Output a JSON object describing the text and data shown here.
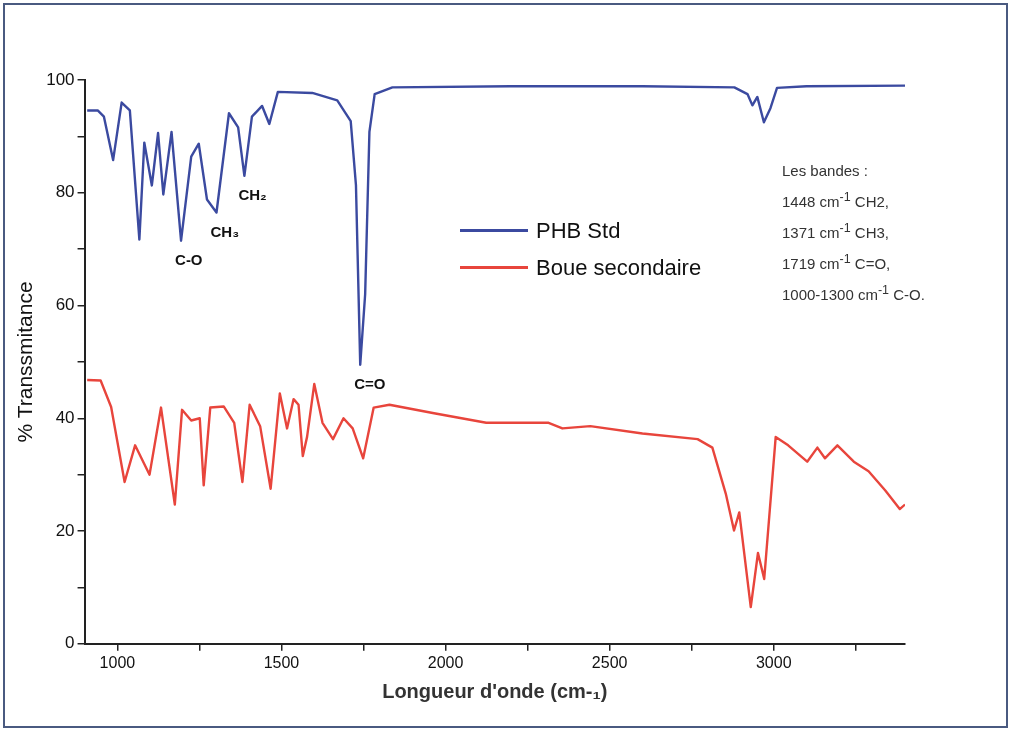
{
  "chart_data": {
    "type": "line",
    "xlabel": "Longueur d'onde (cm-₁)",
    "ylabel": "% Transsmitance",
    "xlim": [
      900,
      3400
    ],
    "xticks": [
      1000,
      {
        "value": 1250,
        "label": null
      },
      1500,
      {
        "value": 1750,
        "label": null
      },
      2000,
      {
        "value": 2250,
        "label": null
      },
      2500,
      {
        "value": 2750,
        "label": null
      },
      3000,
      {
        "value": 3250,
        "label": null
      }
    ],
    "ylim": [
      0,
      100
    ],
    "yticks": [
      0,
      {
        "value": 10,
        "label": null
      },
      20,
      {
        "value": 30,
        "label": null
      },
      40,
      {
        "value": 50,
        "label": null
      },
      60,
      {
        "value": 70,
        "label": null
      },
      80,
      {
        "value": 90,
        "label": null
      },
      100
    ],
    "grid": false,
    "legend": "right",
    "marker": "none",
    "line_style": "solid",
    "series": [
      {
        "name": "PHB  Std",
        "color": "#3b4aa0",
        "x": [
          908,
          940,
          959,
          987,
          1013,
          1038,
          1067,
          1082,
          1105,
          1124,
          1140,
          1165,
          1194,
          1225,
          1248,
          1273,
          1302,
          1340,
          1368,
          1387,
          1410,
          1441,
          1463,
          1489,
          1594,
          1670,
          1711,
          1727,
          1740,
          1755,
          1768,
          1784,
          1838,
          2200,
          2600,
          2880,
          2920,
          2935,
          2950,
          2970,
          2990,
          3010,
          3100,
          3400
        ],
        "values": [
          94.6,
          94.6,
          93.5,
          85.8,
          96,
          94.6,
          71.7,
          88.9,
          81.3,
          90.6,
          79.7,
          90.8,
          71.5,
          86.4,
          88.7,
          78.8,
          76.5,
          94.1,
          91.6,
          83,
          93.5,
          95.4,
          92.2,
          97.9,
          97.7,
          96.4,
          92.7,
          81.3,
          49.5,
          62,
          90.8,
          97.5,
          98.7,
          98.9,
          98.9,
          98.7,
          97.5,
          95.5,
          97,
          92.5,
          95,
          98.6,
          98.9,
          99
        ]
      },
      {
        "name": "Boue secondaire",
        "color": "#e8453c",
        "x": [
          908,
          949,
          981,
          1022,
          1054,
          1098,
          1133,
          1175,
          1197,
          1225,
          1251,
          1263,
          1283,
          1324,
          1356,
          1381,
          1403,
          1435,
          1467,
          1495,
          1517,
          1537,
          1552,
          1565,
          1578,
          1600,
          1625,
          1657,
          1689,
          1717,
          1749,
          1781,
          1829,
          1965,
          2124,
          2314,
          2356,
          2441,
          2600,
          2768,
          2813,
          2854,
          2879,
          2895,
          2930,
          2952,
          2971,
          3006,
          3044,
          3102,
          3133,
          3156,
          3194,
          3244,
          3289,
          3340,
          3384,
          3400
        ],
        "values": [
          46.8,
          46.7,
          42,
          28.7,
          35.2,
          30,
          41.9,
          24.7,
          41.5,
          39.6,
          40,
          28.1,
          41.9,
          42.1,
          39.2,
          28.7,
          42.4,
          38.6,
          27.5,
          44.4,
          38.2,
          43.4,
          42.4,
          33.3,
          36.7,
          46.1,
          39.2,
          36.3,
          40,
          38.2,
          32.9,
          41.9,
          42.4,
          40.9,
          39.2,
          39.2,
          38.2,
          38.6,
          37.3,
          36.3,
          34.8,
          26.6,
          20.1,
          23.3,
          6.5,
          16.1,
          11.5,
          36.7,
          35.2,
          32.3,
          34.8,
          32.9,
          35.2,
          32.3,
          30.6,
          27.2,
          23.9,
          24.7
        ]
      }
    ],
    "annotations": [
      {
        "text": "C-O",
        "x": 1194,
        "y": 71.5
      },
      {
        "text": "CH₃",
        "x": 1302,
        "y": 76.5
      },
      {
        "text": "CH₂",
        "x": 1387,
        "y": 83
      },
      {
        "text": "C=O",
        "x": 1740,
        "y": 49.5
      },
      "Les bandes :",
      "1448 cm$^{-1}$  CH2,",
      "1371 cm$^{-1}$  CH3,",
      "1719 cm$^{-1}$ C=O,",
      "1000-1300 cm$^{-1}$ C-O."
    ]
  }
}
